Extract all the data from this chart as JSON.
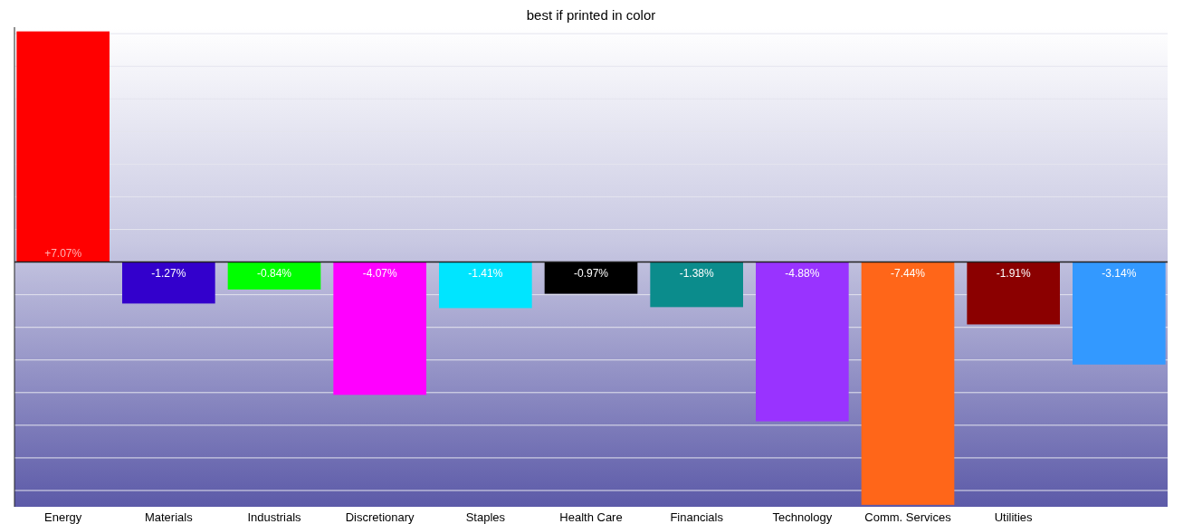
{
  "chart_data": {
    "type": "bar",
    "title": "best if printed in color",
    "categories": [
      "Energy",
      "Materials",
      "Industrials",
      "Discretionary",
      "Staples",
      "Health Care",
      "Financials",
      "Technology",
      "Comm. Services",
      "Utilities",
      null
    ],
    "values": [
      7.07,
      -1.27,
      -0.84,
      -4.07,
      -1.41,
      -0.97,
      -1.38,
      -4.88,
      -7.44,
      -1.91,
      -3.14
    ],
    "colors": [
      "#ff0000",
      "#3300cc",
      "#00ff00",
      "#ff00ff",
      "#00e5ff",
      "#000000",
      "#0b8c8c",
      "#9933ff",
      "#ff6619",
      "#8b0000",
      "#3399ff"
    ],
    "value_labels": [
      "+7.07%",
      "-1.27%",
      "-0.84%",
      "-4.07%",
      "-1.41%",
      "-0.97%",
      "-1.38%",
      "-4.88%",
      "-7.44%",
      "-1.91%",
      "-3.14%"
    ],
    "ylim": [
      -7.5,
      7.2
    ],
    "grid": "y",
    "tick_labels": "x"
  }
}
